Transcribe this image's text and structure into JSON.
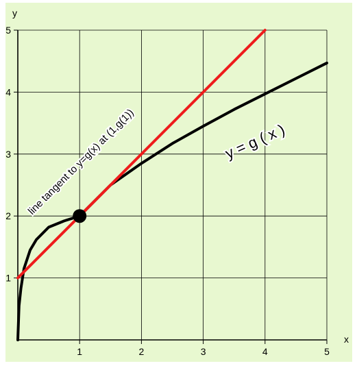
{
  "chart_data": {
    "type": "line",
    "xlabel": "x",
    "ylabel": "y",
    "xlim": [
      0,
      5
    ],
    "ylim": [
      0,
      5
    ],
    "xticks": [
      "1",
      "2",
      "3",
      "4",
      "5"
    ],
    "yticks": [
      "1",
      "2",
      "3",
      "4",
      "5"
    ],
    "grid": true,
    "series": [
      {
        "name": "y = g ( x )",
        "color": "#000000",
        "x": [
          0.0,
          0.02,
          0.05,
          0.1,
          0.2,
          0.3,
          0.5,
          0.75,
          1.0,
          1.5,
          2.0,
          2.5,
          3.0,
          3.5,
          4.0,
          4.5,
          5.0
        ],
        "y": [
          0.0,
          0.55,
          0.83,
          1.15,
          1.45,
          1.62,
          1.82,
          1.92,
          2.0,
          2.5,
          2.85,
          3.17,
          3.45,
          3.72,
          3.97,
          4.22,
          4.47
        ]
      },
      {
        "name": "line tangent to y=g(x) at (1,g(1))",
        "color": "#ee1c1c",
        "x": [
          0,
          4
        ],
        "y": [
          1,
          5
        ]
      }
    ],
    "point": {
      "x": 1,
      "y": 2,
      "color": "#000000"
    }
  },
  "colors": {
    "background": "#e8f8d0",
    "grid": "#000000",
    "axis_label": "#000000"
  }
}
